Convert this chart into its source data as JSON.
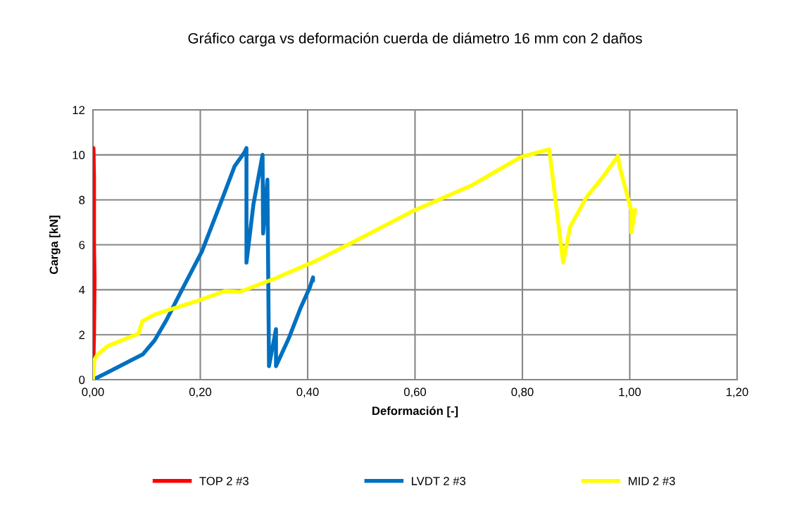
{
  "chart_data": {
    "type": "line",
    "title": "Gráfico carga vs deformación cuerda de diámetro 16 mm con 2 daños",
    "xlabel": "Deformación [-]",
    "ylabel": "Carga [kN]",
    "xlim": [
      0,
      1.2
    ],
    "xticks": [
      {
        "value": 0,
        "label": "0,00"
      },
      {
        "value": 0.2,
        "label": "0,20"
      },
      {
        "value": 0.4,
        "label": "0,40"
      },
      {
        "value": 0.6,
        "label": "0,60"
      },
      {
        "value": 0.8,
        "label": "0,80"
      },
      {
        "value": 1.0,
        "label": "1,00"
      },
      {
        "value": 1.2,
        "label": "1,20"
      }
    ],
    "ylim": [
      0,
      12
    ],
    "yticks": [
      0,
      2,
      4,
      6,
      8,
      10,
      12
    ],
    "grid": true,
    "legend": "bottom",
    "marker": "none",
    "line_style": "solid",
    "series": [
      {
        "name": "TOP 2 #3",
        "color": "#ff0000",
        "x": [
          0,
          0.002,
          0.003,
          0.002,
          0.002,
          0.001
        ],
        "values": [
          0,
          2,
          4.5,
          6,
          9,
          10.3
        ]
      },
      {
        "name": "LVDT 2 #3",
        "color": "#0070c0",
        "x": [
          0,
          0.024,
          0.093,
          0.115,
          0.138,
          0.168,
          0.203,
          0.237,
          0.264,
          0.282,
          0.286,
          0.286,
          0.299,
          0.316,
          0.317,
          0.325,
          0.328,
          0.341,
          0.341,
          0.365,
          0.387,
          0.404,
          0.41,
          0.41
        ],
        "values": [
          0,
          0.28,
          1.13,
          1.75,
          2.7,
          4.1,
          5.7,
          7.8,
          9.5,
          10.1,
          10.3,
          5.2,
          7.8,
          10.0,
          6.5,
          8.9,
          0.6,
          2.25,
          0.6,
          1.85,
          3.2,
          4.1,
          4.55,
          4.4
        ]
      },
      {
        "name": "MID 2 #3",
        "color": "#ffff00",
        "x": [
          0,
          0.003,
          0.008,
          0.028,
          0.085,
          0.092,
          0.115,
          0.194,
          0.247,
          0.273,
          0.334,
          0.417,
          0.487,
          0.596,
          0.706,
          0.797,
          0.85,
          0.876,
          0.889,
          0.919,
          0.951,
          0.978,
          0.981,
          1.003,
          1.003,
          1.01
        ],
        "values": [
          0,
          0.9,
          1.1,
          1.5,
          2.05,
          2.6,
          2.9,
          3.5,
          3.95,
          3.9,
          4.45,
          5.3,
          6.15,
          7.5,
          8.65,
          9.9,
          10.25,
          5.2,
          6.8,
          8.1,
          9.05,
          9.95,
          9.5,
          7.5,
          6.55,
          7.55
        ]
      }
    ]
  }
}
